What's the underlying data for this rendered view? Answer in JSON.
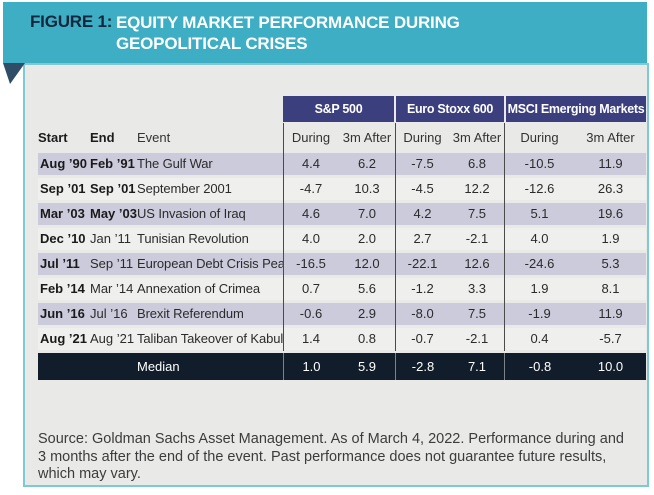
{
  "banner": {
    "figure_label": "FIGURE 1:",
    "title": "EQUITY MARKET PERFORMANCE DURING GEOPOLITICAL CRISES"
  },
  "colors": {
    "banner_teal": "#3DAEC4",
    "banner_label_navy": "#13283C",
    "fold_navy": "#2F4D66",
    "panel_background": "#E9E9E7",
    "panel_border_teal": "#7FC9D7",
    "group_header_indigo": "#3B3F7D",
    "row_lavender": "#CBCBDC",
    "row_light": "#EFEFED",
    "median_navy": "#121D2B"
  },
  "table": {
    "group_headers": {
      "sp500": "S&P 500",
      "eurostoxx": "Euro Stoxx 600",
      "msci_em": "MSCI Emerging Markets"
    },
    "left_headers": {
      "start": "Start",
      "end": "End",
      "event": "Event"
    },
    "sub_headers": {
      "during": "During",
      "after": "3m After"
    },
    "rows": [
      {
        "start": "Aug ’90",
        "end": "Feb ’91",
        "end_bold": true,
        "event": "The Gulf War",
        "values": [
          "4.4",
          "6.2",
          "-7.5",
          "6.8",
          "-10.5",
          "11.9"
        ]
      },
      {
        "start": "Sep ’01",
        "end": "Sep ’01",
        "end_bold": true,
        "event": "September 2001",
        "values": [
          "-4.7",
          "10.3",
          "-4.5",
          "12.2",
          "-12.6",
          "26.3"
        ]
      },
      {
        "start": "Mar ’03",
        "end": "May ’03",
        "end_bold": true,
        "event": "US Invasion of Iraq",
        "values": [
          "4.6",
          "7.0",
          "4.2",
          "7.5",
          "5.1",
          "19.6"
        ]
      },
      {
        "start": "Dec ’10",
        "end": "Jan ’11",
        "end_bold": false,
        "event": "Tunisian Revolution",
        "values": [
          "4.0",
          "2.0",
          "2.7",
          "-2.1",
          "4.0",
          "1.9"
        ]
      },
      {
        "start": "Jul ’11",
        "end": "Sep ’11",
        "end_bold": false,
        "event": "European Debt Crisis Peaks",
        "values": [
          "-16.5",
          "12.0",
          "-22.1",
          "12.6",
          "-24.6",
          "5.3"
        ]
      },
      {
        "start": "Feb ’14",
        "end": "Mar ’14",
        "end_bold": false,
        "event": "Annexation of Crimea",
        "values": [
          "0.7",
          "5.6",
          "-1.2",
          "3.3",
          "1.9",
          "8.1"
        ]
      },
      {
        "start": "Jun ’16",
        "end": "Jul ’16",
        "end_bold": false,
        "event": "Brexit Referendum",
        "values": [
          "-0.6",
          "2.9",
          "-8.0",
          "7.5",
          "-1.9",
          "11.9"
        ]
      },
      {
        "start": "Aug ’21",
        "end": "Aug ’21",
        "end_bold": false,
        "event": "Taliban Takeover of Kabul",
        "values": [
          "1.4",
          "0.8",
          "-0.7",
          "-2.1",
          "0.4",
          "-5.7"
        ]
      }
    ],
    "median": {
      "label": "Median",
      "values": {
        "0": "1.0",
        "1": "5.9",
        "2": "-2.8",
        "3": "7.1",
        "4": "-0.8",
        "5": "10.0"
      }
    }
  },
  "source_note": "Source: Goldman Sachs Asset Management. As of March 4, 2022. Performance during and 3 months after the end of the event. Past performance does not guarantee future results, which may vary.",
  "chart_data": {
    "type": "table",
    "title": "FIGURE 1: EQUITY MARKET PERFORMANCE DURING GEOPOLITICAL CRISES",
    "column_groups": [
      "S&P 500",
      "Euro Stoxx 600",
      "MSCI Emerging Markets"
    ],
    "columns": [
      "Start",
      "End",
      "Event",
      "S&P 500 During",
      "S&P 500 3m After",
      "Euro Stoxx 600 During",
      "Euro Stoxx 600 3m After",
      "MSCI Emerging Markets During",
      "MSCI Emerging Markets 3m After"
    ],
    "rows": [
      [
        "Aug ’90",
        "Feb ’91",
        "The Gulf War",
        4.4,
        6.2,
        -7.5,
        6.8,
        -10.5,
        11.9
      ],
      [
        "Sep ’01",
        "Sep ’01",
        "September 2001",
        -4.7,
        10.3,
        -4.5,
        12.2,
        -12.6,
        26.3
      ],
      [
        "Mar ’03",
        "May ’03",
        "US Invasion of Iraq",
        4.6,
        7.0,
        4.2,
        7.5,
        5.1,
        19.6
      ],
      [
        "Dec ’10",
        "Jan ’11",
        "Tunisian Revolution",
        4.0,
        2.0,
        2.7,
        -2.1,
        4.0,
        1.9
      ],
      [
        "Jul ’11",
        "Sep ’11",
        "European Debt Crisis Peaks",
        -16.5,
        12.0,
        -22.1,
        12.6,
        -24.6,
        5.3
      ],
      [
        "Feb ’14",
        "Mar ’14",
        "Annexation of Crimea",
        0.7,
        5.6,
        -1.2,
        3.3,
        1.9,
        8.1
      ],
      [
        "Jun ’16",
        "Jul ’16",
        "Brexit Referendum",
        -0.6,
        2.9,
        -8.0,
        7.5,
        -1.9,
        11.9
      ],
      [
        "Aug ’21",
        "Aug ’21",
        "Taliban Takeover of Kabul",
        1.4,
        0.8,
        -0.7,
        -2.1,
        0.4,
        -5.7
      ]
    ],
    "median_row": [
      "",
      "",
      "Median",
      1.0,
      5.9,
      -2.8,
      7.1,
      -0.8,
      10.0
    ],
    "source": "Source: Goldman Sachs Asset Management. As of March 4, 2022. Performance during and 3 months after the end of the event. Past performance does not guarantee future results, which may vary."
  }
}
